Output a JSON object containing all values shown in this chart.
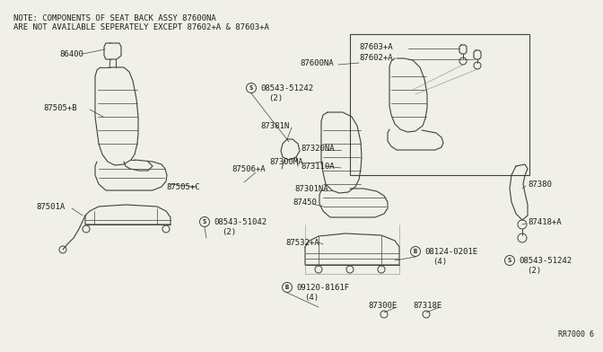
{
  "bg_color": "#f0f0e8",
  "line_color": "#404040",
  "text_color": "#202020",
  "note_line1": "NOTE: COMPONENTS OF SEAT BACK ASSY 87600NA",
  "note_line2": "ARE NOT AVAILABLE SEPERATELY EXCEPT 87602+A & 87603+A",
  "part_number_ref": "RR7000 6",
  "fig_w": 6.4,
  "fig_h": 3.72
}
